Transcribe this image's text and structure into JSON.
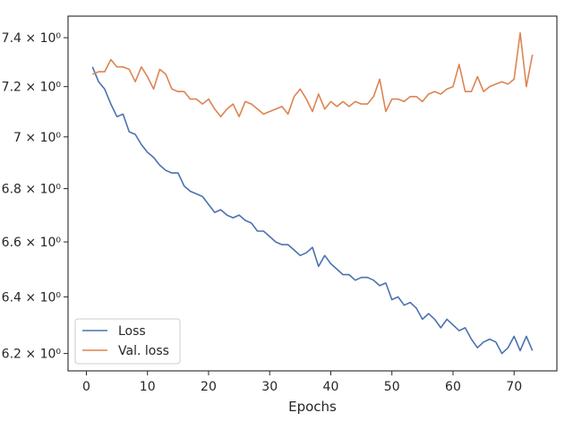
{
  "chart_data": {
    "type": "line",
    "title": "",
    "xlabel": "Epochs",
    "ylabel": "",
    "yscale": "log",
    "xlim": [
      -3,
      77
    ],
    "ylim": [
      6.14,
      7.49
    ],
    "xticks": [
      0,
      10,
      20,
      30,
      40,
      50,
      60,
      70
    ],
    "xtick_labels": [
      "0",
      "10",
      "20",
      "30",
      "40",
      "50",
      "60",
      "70"
    ],
    "yticks": [
      6.2,
      6.4,
      6.6,
      6.8,
      7.0,
      7.2,
      7.4
    ],
    "ytick_labels": [
      "6.2 × 10⁰",
      "6.4 × 10⁰",
      "6.6 × 10⁰",
      "6.8 × 10⁰",
      "7 × 10⁰",
      "7.2 × 10⁰",
      "7.4 × 10⁰"
    ],
    "grid": false,
    "legend": "lower-left",
    "x_start": 1,
    "series": [
      {
        "name": "Loss",
        "color": "#4c72b0",
        "values": [
          7.28,
          7.22,
          7.19,
          7.13,
          7.08,
          7.09,
          7.02,
          7.01,
          6.97,
          6.94,
          6.92,
          6.89,
          6.87,
          6.86,
          6.86,
          6.81,
          6.79,
          6.78,
          6.77,
          6.74,
          6.71,
          6.72,
          6.7,
          6.69,
          6.7,
          6.68,
          6.67,
          6.64,
          6.64,
          6.62,
          6.6,
          6.59,
          6.59,
          6.57,
          6.55,
          6.56,
          6.58,
          6.51,
          6.55,
          6.52,
          6.5,
          6.48,
          6.48,
          6.46,
          6.47,
          6.47,
          6.46,
          6.44,
          6.45,
          6.39,
          6.4,
          6.37,
          6.38,
          6.36,
          6.32,
          6.34,
          6.32,
          6.29,
          6.32,
          6.3,
          6.28,
          6.29,
          6.25,
          6.22,
          6.24,
          6.25,
          6.24,
          6.2,
          6.22,
          6.26,
          6.21,
          6.26,
          6.21
        ]
      },
      {
        "name": "Val. loss",
        "color": "#dd8452",
        "values": [
          7.25,
          7.26,
          7.26,
          7.31,
          7.28,
          7.28,
          7.27,
          7.22,
          7.28,
          7.24,
          7.19,
          7.27,
          7.25,
          7.19,
          7.18,
          7.18,
          7.15,
          7.15,
          7.13,
          7.15,
          7.11,
          7.08,
          7.11,
          7.13,
          7.08,
          7.14,
          7.13,
          7.11,
          7.09,
          7.1,
          7.11,
          7.12,
          7.09,
          7.16,
          7.19,
          7.15,
          7.1,
          7.17,
          7.11,
          7.14,
          7.12,
          7.14,
          7.12,
          7.14,
          7.13,
          7.13,
          7.16,
          7.23,
          7.1,
          7.15,
          7.15,
          7.14,
          7.16,
          7.16,
          7.14,
          7.17,
          7.18,
          7.17,
          7.19,
          7.2,
          7.29,
          7.18,
          7.18,
          7.24,
          7.18,
          7.2,
          7.21,
          7.22,
          7.21,
          7.23,
          7.42,
          7.2,
          7.33
        ]
      }
    ]
  }
}
